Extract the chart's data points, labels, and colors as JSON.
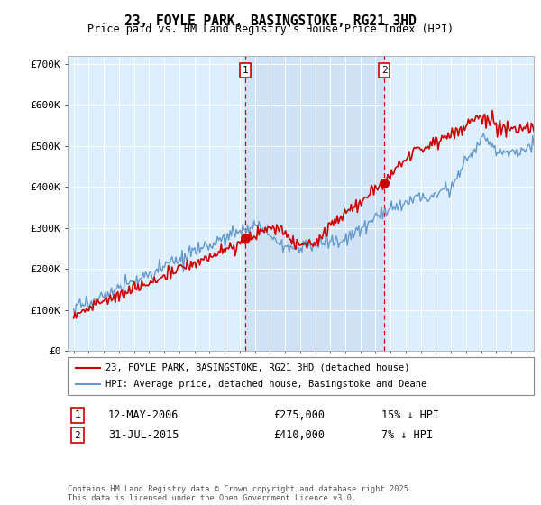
{
  "title": "23, FOYLE PARK, BASINGSTOKE, RG21 3HD",
  "subtitle": "Price paid vs. HM Land Registry's House Price Index (HPI)",
  "ylabel_ticks": [
    "£0",
    "£100K",
    "£200K",
    "£300K",
    "£400K",
    "£500K",
    "£600K",
    "£700K"
  ],
  "ytick_vals": [
    0,
    100000,
    200000,
    300000,
    400000,
    500000,
    600000,
    700000
  ],
  "ylim": [
    0,
    720000
  ],
  "xlim_start": 1994.6,
  "xlim_end": 2025.5,
  "xticks": [
    1995,
    1996,
    1997,
    1998,
    1999,
    2000,
    2001,
    2002,
    2003,
    2004,
    2005,
    2006,
    2007,
    2008,
    2009,
    2010,
    2011,
    2012,
    2013,
    2014,
    2015,
    2016,
    2017,
    2018,
    2019,
    2020,
    2021,
    2022,
    2023,
    2024,
    2025
  ],
  "marker1_x": 2006.36,
  "marker1_y": 275000,
  "marker2_x": 2015.58,
  "marker2_y": 410000,
  "marker1_label": "1",
  "marker2_label": "2",
  "marker1_date": "12-MAY-2006",
  "marker1_price": "£275,000",
  "marker1_hpi": "15% ↓ HPI",
  "marker2_date": "31-JUL-2015",
  "marker2_price": "£410,000",
  "marker2_hpi": "7% ↓ HPI",
  "legend_line1": "23, FOYLE PARK, BASINGSTOKE, RG21 3HD (detached house)",
  "legend_line2": "HPI: Average price, detached house, Basingstoke and Deane",
  "footer": "Contains HM Land Registry data © Crown copyright and database right 2025.\nThis data is licensed under the Open Government Licence v3.0.",
  "red_color": "#cc0000",
  "blue_color": "#6699cc",
  "blue_fill": "#ddeeff",
  "bg_color": "#ddeeff",
  "shade_color": "#c8dcf0"
}
